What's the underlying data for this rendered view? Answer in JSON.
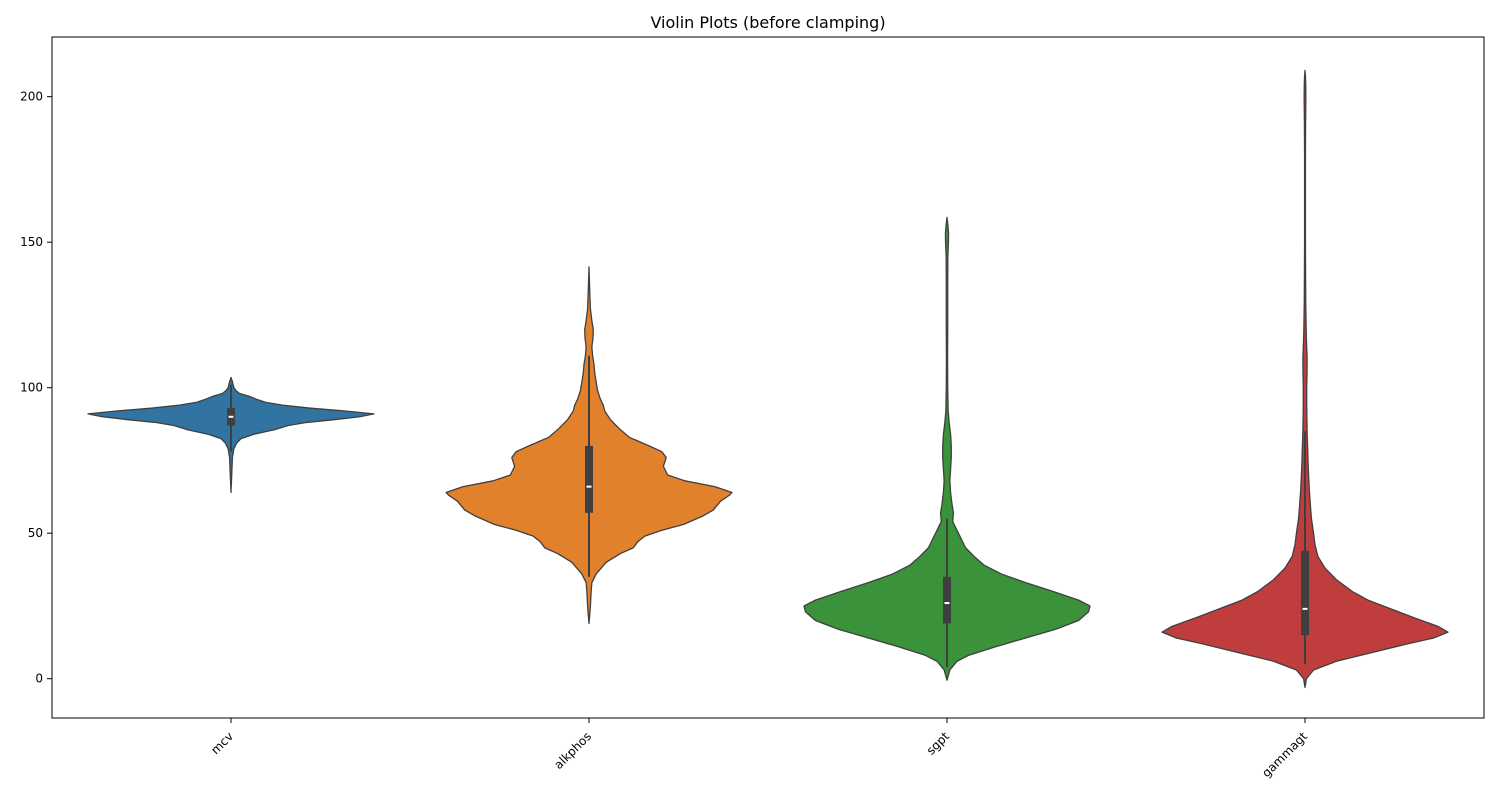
{
  "chart_data": {
    "type": "violin",
    "title": "Violin Plots (before clamping)",
    "xlabel": "",
    "ylabel": "",
    "ylim": [
      -13.5,
      220.5
    ],
    "yticks": [
      0,
      50,
      100,
      150,
      200
    ],
    "grid": false,
    "categories": [
      "mcv",
      "alkphos",
      "sgpt",
      "gammagt"
    ],
    "series": [
      {
        "category": "mcv",
        "color": "#3274a1",
        "quartiles": [
          87,
          90,
          93
        ],
        "whisker": [
          78,
          101
        ],
        "range": [
          64,
          103.5
        ],
        "profile": [
          [
            64,
            0.0
          ],
          [
            70,
            0.005
          ],
          [
            76,
            0.01
          ],
          [
            79,
            0.02
          ],
          [
            81,
            0.04
          ],
          [
            82.5,
            0.07
          ],
          [
            84,
            0.16
          ],
          [
            85.5,
            0.3
          ],
          [
            87,
            0.4
          ],
          [
            88,
            0.52
          ],
          [
            89,
            0.72
          ],
          [
            90,
            0.9
          ],
          [
            91,
            1.0
          ],
          [
            92,
            0.8
          ],
          [
            93,
            0.55
          ],
          [
            94,
            0.36
          ],
          [
            95,
            0.24
          ],
          [
            96,
            0.18
          ],
          [
            97,
            0.13
          ],
          [
            98,
            0.06
          ],
          [
            99,
            0.035
          ],
          [
            100,
            0.02
          ],
          [
            102,
            0.01
          ],
          [
            103.5,
            0.0
          ]
        ]
      },
      {
        "category": "alkphos",
        "color": "#e1812c",
        "quartiles": [
          57,
          66,
          80
        ],
        "whisker": [
          35,
          111
        ],
        "range": [
          19,
          141.5
        ],
        "profile": [
          [
            19,
            0.0
          ],
          [
            25,
            0.01
          ],
          [
            30,
            0.015
          ],
          [
            33,
            0.02
          ],
          [
            36,
            0.05
          ],
          [
            40,
            0.12
          ],
          [
            43,
            0.22
          ],
          [
            45,
            0.31
          ],
          [
            47,
            0.34
          ],
          [
            49,
            0.39
          ],
          [
            51,
            0.51
          ],
          [
            53,
            0.66
          ],
          [
            56,
            0.8
          ],
          [
            58,
            0.87
          ],
          [
            61,
            0.92
          ],
          [
            63,
            0.98
          ],
          [
            64,
            1.0
          ],
          [
            66,
            0.88
          ],
          [
            68,
            0.67
          ],
          [
            70,
            0.55
          ],
          [
            73,
            0.52
          ],
          [
            76,
            0.54
          ],
          [
            78,
            0.51
          ],
          [
            80,
            0.42
          ],
          [
            83,
            0.28
          ],
          [
            86,
            0.21
          ],
          [
            89,
            0.15
          ],
          [
            92,
            0.11
          ],
          [
            94,
            0.1
          ],
          [
            96,
            0.08
          ],
          [
            99,
            0.06
          ],
          [
            102,
            0.05
          ],
          [
            105,
            0.04
          ],
          [
            108,
            0.035
          ],
          [
            111,
            0.025
          ],
          [
            114,
            0.02
          ],
          [
            117,
            0.028
          ],
          [
            120,
            0.03
          ],
          [
            123,
            0.02
          ],
          [
            127,
            0.01
          ],
          [
            132,
            0.006
          ],
          [
            141.5,
            0.0
          ]
        ]
      },
      {
        "category": "sgpt",
        "color": "#3a923a",
        "quartiles": [
          19,
          26,
          35
        ],
        "whisker": [
          4,
          55
        ],
        "range": [
          -0.5,
          158.5
        ],
        "profile": [
          [
            -0.5,
            0.0
          ],
          [
            3,
            0.02
          ],
          [
            6,
            0.07
          ],
          [
            8,
            0.15
          ],
          [
            11,
            0.34
          ],
          [
            14,
            0.55
          ],
          [
            17,
            0.76
          ],
          [
            20,
            0.92
          ],
          [
            23,
            0.99
          ],
          [
            25,
            1.0
          ],
          [
            27,
            0.92
          ],
          [
            30,
            0.74
          ],
          [
            33,
            0.55
          ],
          [
            36,
            0.38
          ],
          [
            39,
            0.26
          ],
          [
            42,
            0.19
          ],
          [
            45,
            0.13
          ],
          [
            48,
            0.1
          ],
          [
            51,
            0.07
          ],
          [
            54,
            0.04
          ],
          [
            57,
            0.045
          ],
          [
            60,
            0.035
          ],
          [
            64,
            0.025
          ],
          [
            68,
            0.02
          ],
          [
            72,
            0.025
          ],
          [
            76,
            0.03
          ],
          [
            80,
            0.03
          ],
          [
            84,
            0.025
          ],
          [
            88,
            0.015
          ],
          [
            92,
            0.008
          ],
          [
            100,
            0.005
          ],
          [
            110,
            0.004
          ],
          [
            120,
            0.005
          ],
          [
            135,
            0.005
          ],
          [
            145,
            0.006
          ],
          [
            150,
            0.01
          ],
          [
            153,
            0.011
          ],
          [
            156,
            0.006
          ],
          [
            158.5,
            0.0
          ]
        ]
      },
      {
        "category": "gammagt",
        "color": "#c03d3e",
        "quartiles": [
          15,
          24,
          44
        ],
        "whisker": [
          5,
          85
        ],
        "range": [
          -3,
          209
        ],
        "profile": [
          [
            -3,
            0.0
          ],
          [
            0,
            0.01
          ],
          [
            3,
            0.06
          ],
          [
            6,
            0.22
          ],
          [
            9,
            0.47
          ],
          [
            12,
            0.72
          ],
          [
            14,
            0.9
          ],
          [
            16,
            1.0
          ],
          [
            18,
            0.93
          ],
          [
            21,
            0.76
          ],
          [
            24,
            0.6
          ],
          [
            27,
            0.44
          ],
          [
            30,
            0.33
          ],
          [
            34,
            0.22
          ],
          [
            38,
            0.14
          ],
          [
            42,
            0.09
          ],
          [
            46,
            0.07
          ],
          [
            50,
            0.06
          ],
          [
            55,
            0.045
          ],
          [
            60,
            0.037
          ],
          [
            65,
            0.03
          ],
          [
            70,
            0.025
          ],
          [
            75,
            0.021
          ],
          [
            80,
            0.018
          ],
          [
            85,
            0.015
          ],
          [
            90,
            0.013
          ],
          [
            95,
            0.012
          ],
          [
            100,
            0.012
          ],
          [
            105,
            0.014
          ],
          [
            110,
            0.015
          ],
          [
            115,
            0.011
          ],
          [
            120,
            0.008
          ],
          [
            130,
            0.005
          ],
          [
            140,
            0.004
          ],
          [
            150,
            0.003
          ],
          [
            160,
            0.003
          ],
          [
            170,
            0.003
          ],
          [
            180,
            0.003
          ],
          [
            190,
            0.004
          ],
          [
            195,
            0.005
          ],
          [
            200,
            0.006
          ],
          [
            204,
            0.005
          ],
          [
            207,
            0.003
          ],
          [
            209,
            0.0
          ]
        ]
      }
    ]
  }
}
